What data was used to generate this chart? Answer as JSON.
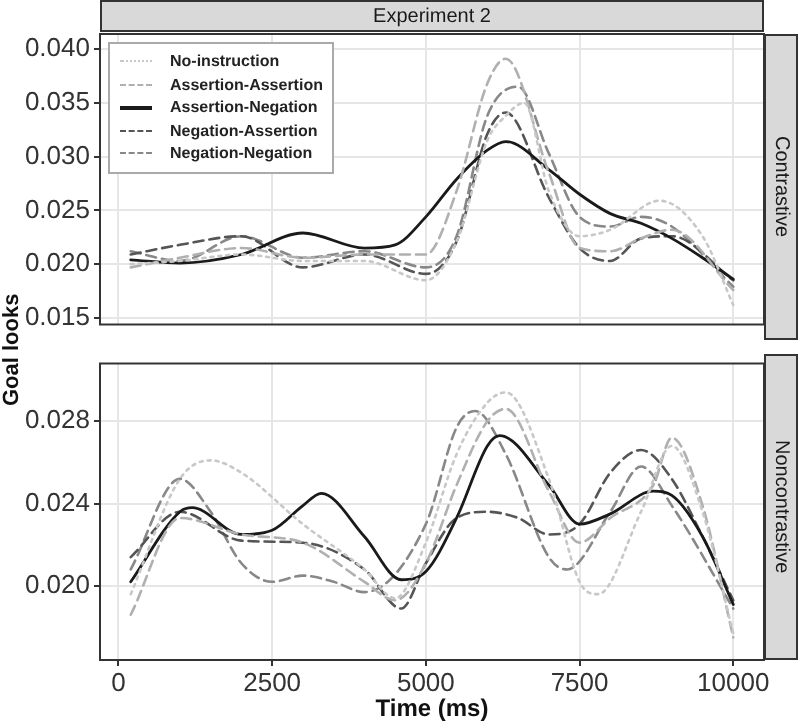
{
  "chart_data": [
    {
      "type": "line",
      "title": "Experiment 2",
      "ylabel": "Goal looks",
      "annotations": [
        "Contrastive"
      ],
      "legend": "top left",
      "grid": true,
      "tick_labels": "y",
      "xlim": [
        -300,
        10500
      ],
      "xticks": [
        0,
        2500,
        5000,
        7500,
        10000
      ],
      "ylim": [
        0.0144,
        0.0414
      ],
      "yticks": [
        {
          "value": 0.015,
          "label": "0.015"
        },
        {
          "value": 0.02,
          "label": "0.020"
        },
        {
          "value": 0.025,
          "label": "0.025"
        },
        {
          "value": 0.03,
          "label": "0.030"
        },
        {
          "value": 0.035,
          "label": "0.035"
        },
        {
          "value": 0.04,
          "label": "0.040"
        }
      ],
      "series": [
        {
          "name": "No-instruction",
          "color": "#c8c8c8",
          "line_style": "dotted",
          "x": [
            200,
            1000,
            2000,
            3000,
            4000,
            5000,
            5500,
            6000,
            6300,
            6600,
            7000,
            7500,
            8000,
            8800,
            9500,
            10000
          ],
          "values": [
            0.02,
            0.0203,
            0.0209,
            0.0203,
            0.0203,
            0.0185,
            0.0221,
            0.0315,
            0.0338,
            0.035,
            0.0268,
            0.0226,
            0.0232,
            0.0259,
            0.0226,
            0.0162
          ]
        },
        {
          "name": "Assertion-Assertion",
          "color": "#b0b0b0",
          "line_style": "dashed",
          "x": [
            200,
            1000,
            2000,
            3000,
            4000,
            5000,
            5500,
            6000,
            6300,
            7000,
            7500,
            8000,
            8500,
            9000,
            10000
          ],
          "values": [
            0.0197,
            0.0206,
            0.0215,
            0.0206,
            0.0209,
            0.0209,
            0.0268,
            0.0368,
            0.0391,
            0.0285,
            0.0215,
            0.0212,
            0.0224,
            0.0232,
            0.0176
          ]
        },
        {
          "name": "Assertion-Negation",
          "color": "#1a1a1a",
          "line_style": "solid",
          "x": [
            200,
            1000,
            2000,
            3000,
            4000,
            4500,
            5000,
            5500,
            6000,
            6300,
            7000,
            7500,
            8000,
            8500,
            9000,
            9500,
            10000
          ],
          "values": [
            0.0204,
            0.0201,
            0.0209,
            0.0229,
            0.0215,
            0.0218,
            0.0244,
            0.0279,
            0.0306,
            0.0314,
            0.0288,
            0.0265,
            0.0247,
            0.0238,
            0.0224,
            0.0206,
            0.0186
          ]
        },
        {
          "name": "Negation-Assertion",
          "color": "#555555",
          "line_style": "dashed",
          "x": [
            200,
            1000,
            2000,
            3000,
            4000,
            5000,
            5500,
            6000,
            6300,
            7000,
            7500,
            8000,
            8500,
            9000,
            10000
          ],
          "values": [
            0.0209,
            0.0218,
            0.0226,
            0.0197,
            0.0209,
            0.0191,
            0.0221,
            0.0321,
            0.0341,
            0.0262,
            0.0215,
            0.0203,
            0.0224,
            0.0226,
            0.0185
          ]
        },
        {
          "name": "Negation-Negation",
          "color": "#888888",
          "line_style": "dashed",
          "x": [
            200,
            1000,
            2000,
            3000,
            4000,
            5000,
            5500,
            6000,
            6500,
            7000,
            7500,
            8000,
            8500,
            9000,
            10000
          ],
          "values": [
            0.0212,
            0.0203,
            0.0226,
            0.0206,
            0.0212,
            0.0197,
            0.0226,
            0.0338,
            0.0365,
            0.0303,
            0.0244,
            0.0235,
            0.0244,
            0.0235,
            0.0179
          ]
        }
      ]
    },
    {
      "type": "line",
      "xlabel": "Time (ms)",
      "annotations": [
        "Noncontrastive"
      ],
      "grid": true,
      "xlim": [
        -300,
        10500
      ],
      "xticks": [
        0,
        2500,
        5000,
        7500,
        10000
      ],
      "ylim": [
        0.0164,
        0.0308
      ],
      "yticks": [
        {
          "value": 0.02,
          "label": "0.020"
        },
        {
          "value": 0.024,
          "label": "0.024"
        },
        {
          "value": 0.028,
          "label": "0.028"
        }
      ],
      "series": [
        {
          "color": "#c8c8c8",
          "line_style": "dotted",
          "x": [
            200,
            1000,
            1500,
            2000,
            3000,
            4000,
            4500,
            5000,
            5500,
            6000,
            6300,
            7000,
            7500,
            7800,
            8500,
            9000,
            9500,
            10000
          ],
          "values": [
            0.0196,
            0.0252,
            0.0261,
            0.0255,
            0.023,
            0.0208,
            0.0194,
            0.0221,
            0.0264,
            0.0289,
            0.0294,
            0.0252,
            0.0202,
            0.0196,
            0.0236,
            0.0268,
            0.0236,
            0.0177
          ]
        },
        {
          "color": "#b0b0b0",
          "line_style": "dashed",
          "x": [
            200,
            1000,
            2000,
            3000,
            4000,
            4500,
            5000,
            5500,
            6000,
            6300,
            7000,
            7500,
            8000,
            8700,
            9000,
            9500,
            10000
          ],
          "values": [
            0.0186,
            0.0233,
            0.0225,
            0.0221,
            0.0202,
            0.0193,
            0.0211,
            0.0249,
            0.028,
            0.0286,
            0.0246,
            0.0221,
            0.0233,
            0.0249,
            0.0272,
            0.0239,
            0.0175
          ]
        },
        {
          "color": "#1a1a1a",
          "line_style": "solid",
          "x": [
            200,
            1000,
            1200,
            2000,
            2500,
            3000,
            3300,
            4000,
            4600,
            5000,
            5500,
            6000,
            6200,
            7000,
            7500,
            8000,
            8700,
            9000,
            9500,
            10000
          ],
          "values": [
            0.0202,
            0.0236,
            0.0238,
            0.0225,
            0.0227,
            0.0239,
            0.0245,
            0.0224,
            0.0203,
            0.0207,
            0.0233,
            0.0268,
            0.0273,
            0.0249,
            0.023,
            0.0235,
            0.0246,
            0.0244,
            0.0224,
            0.0191
          ]
        },
        {
          "color": "#555555",
          "line_style": "dashed",
          "x": [
            200,
            1000,
            2000,
            3000,
            4000,
            4600,
            5000,
            5500,
            6000,
            6500,
            7000,
            7500,
            8000,
            8500,
            9000,
            9500,
            10000
          ],
          "values": [
            0.0214,
            0.0236,
            0.0222,
            0.0221,
            0.0208,
            0.0189,
            0.0211,
            0.0233,
            0.0236,
            0.0233,
            0.0225,
            0.023,
            0.0255,
            0.0266,
            0.0252,
            0.0224,
            0.0193
          ]
        },
        {
          "color": "#888888",
          "line_style": "dashed",
          "x": [
            200,
            1000,
            1500,
            2000,
            2500,
            3000,
            3500,
            4000,
            5000,
            5500,
            5800,
            6300,
            7000,
            7300,
            8000,
            8500,
            9000,
            10000
          ],
          "values": [
            0.0208,
            0.0252,
            0.0236,
            0.0211,
            0.0202,
            0.0205,
            0.0202,
            0.0197,
            0.023,
            0.0277,
            0.0285,
            0.0264,
            0.0214,
            0.0208,
            0.0236,
            0.0258,
            0.0239,
            0.0189
          ]
        }
      ]
    }
  ]
}
